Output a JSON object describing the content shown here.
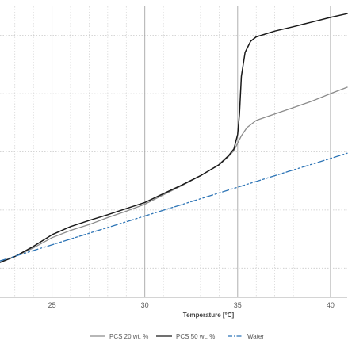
{
  "chart_data": {
    "type": "line",
    "title": "",
    "xlabel": "Temperature [°C]",
    "ylabel": "",
    "x_ticks": [
      25,
      30,
      35,
      40
    ],
    "xlim": [
      22.2,
      40.9
    ],
    "ylim": [
      0,
      100
    ],
    "grid": true,
    "legend_position": "bottom",
    "series": [
      {
        "name": "PCS 20 wt. %",
        "color": "#8c8c8c",
        "dash": "solid",
        "x": [
          22.2,
          23.0,
          24.0,
          25.0,
          26.0,
          27.0,
          28.0,
          29.0,
          30.0,
          31.0,
          32.0,
          33.0,
          34.0,
          34.5,
          34.8,
          35.0,
          35.2,
          35.5,
          36.0,
          37.0,
          38.0,
          39.0,
          40.0,
          40.9
        ],
        "y": [
          12.0,
          14.0,
          17.0,
          20.5,
          23.0,
          25.0,
          27.4,
          29.6,
          32.0,
          35.2,
          38.4,
          41.8,
          45.5,
          48.3,
          50.4,
          53.0,
          55.5,
          58.3,
          60.8,
          63.0,
          65.2,
          67.4,
          70.0,
          72.2
        ]
      },
      {
        "name": "PCS 50 wt. %",
        "color": "#1a1a1a",
        "dash": "solid",
        "x": [
          22.2,
          23.0,
          24.0,
          25.0,
          26.0,
          27.0,
          28.0,
          29.0,
          30.0,
          31.0,
          32.0,
          33.0,
          34.0,
          34.5,
          34.8,
          35.0,
          35.1,
          35.2,
          35.4,
          35.7,
          36.0,
          37.0,
          38.0,
          39.0,
          40.0,
          40.9
        ],
        "y": [
          12.0,
          14.0,
          17.5,
          21.5,
          24.3,
          26.4,
          28.4,
          30.5,
          32.6,
          35.6,
          38.6,
          41.8,
          45.6,
          48.6,
          51.0,
          56.0,
          63.0,
          76.0,
          84.2,
          88.0,
          89.5,
          91.5,
          93.0,
          94.6,
          96.2,
          97.5
        ]
      },
      {
        "name": "Water",
        "color": "#2e75b6",
        "dash": "dash-dot-dot",
        "x": [
          22.2,
          40.9
        ],
        "y": [
          12.5,
          49.5
        ]
      }
    ]
  }
}
